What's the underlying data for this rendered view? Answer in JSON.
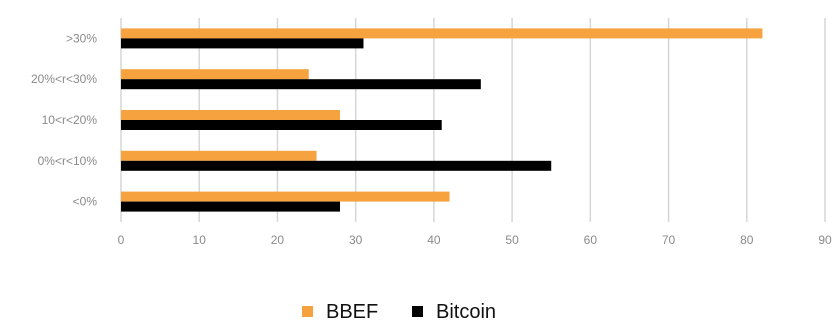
{
  "chart_data": {
    "type": "bar",
    "orientation": "horizontal",
    "categories": [
      ">30%",
      "20%<r<30%",
      "10<r<20%",
      "0%<r<10%",
      "<0%"
    ],
    "series": [
      {
        "name": "BBEF",
        "color": "#F5A23F",
        "values": [
          82,
          24,
          28,
          25,
          42
        ]
      },
      {
        "name": "Bitcoin",
        "color": "#000000",
        "values": [
          31,
          46,
          41,
          55,
          28
        ]
      }
    ],
    "x_ticks": [
      0,
      10,
      20,
      30,
      40,
      50,
      60,
      70,
      80,
      90
    ],
    "xlim": [
      0,
      90
    ],
    "grid": "vertical",
    "legend_position": "bottom"
  }
}
